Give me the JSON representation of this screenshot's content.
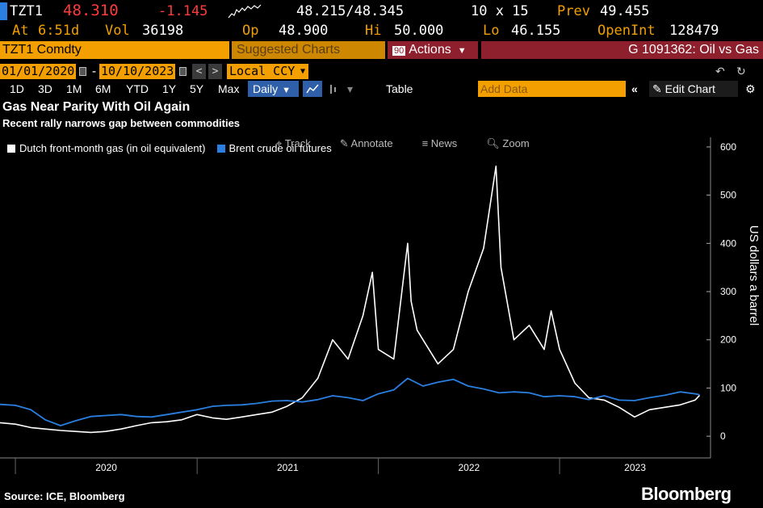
{
  "quote": {
    "ticker": "TZT1",
    "last": "48.310",
    "change": "-1.145",
    "bid_ask": "48.215/48.345",
    "size": "10 x 15",
    "prev_label": "Prev",
    "prev": "49.455",
    "at_label": "At",
    "time": "6:51d",
    "vol_label": "Vol",
    "vol": "36198",
    "op_label": "Op",
    "open": "48.900",
    "hi_label": "Hi",
    "high": "50.000",
    "lo_label": "Lo",
    "low": "46.155",
    "oi_label": "OpenInt",
    "open_interest": "128479"
  },
  "strip": {
    "security": "TZT1 Comdty",
    "suggested": "Suggested Charts",
    "actions_num": "90",
    "actions": "Actions",
    "chart_id": "G 1091362: Oil vs Gas"
  },
  "dates": {
    "start": "01/01/2020",
    "end": "10/10/2023",
    "currency": "Local CCY"
  },
  "toolbar": {
    "periods": [
      "1D",
      "3D",
      "1M",
      "6M",
      "YTD",
      "1Y",
      "5Y",
      "Max"
    ],
    "frequency": "Daily",
    "table": "Table",
    "add_data": "Add Data",
    "edit_chart": "Edit Chart"
  },
  "chart_tools": [
    "Track",
    "Annotate",
    "News",
    "Zoom"
  ],
  "footer": {
    "source": "Source: ICE, Bloomberg",
    "brand": "Bloomberg"
  },
  "colors": {
    "gas": "#ffffff",
    "oil": "#2a7fe0",
    "accent": "#f39f00",
    "action": "#8e1f2c"
  },
  "chart_data": {
    "type": "line",
    "title": "Gas Near Parity With Oil Again",
    "subtitle": "Recent rally narrows gap between commodities",
    "ylabel": "US dollars a barrel",
    "ylim": [
      -45,
      620
    ],
    "yticks": [
      0,
      100,
      200,
      300,
      400,
      500,
      600
    ],
    "xlim": [
      "2019-12-01",
      "2023-11-01"
    ],
    "xticks": [
      "2020",
      "2021",
      "2022",
      "2023"
    ],
    "legend_position": "top-left",
    "grid": false,
    "series": [
      {
        "name": "Dutch front-month gas (in oil equivalent)",
        "x": [
          "2019-12-01",
          "2020-01-01",
          "2020-02-01",
          "2020-03-01",
          "2020-04-01",
          "2020-05-01",
          "2020-06-01",
          "2020-07-01",
          "2020-08-01",
          "2020-09-01",
          "2020-10-01",
          "2020-11-01",
          "2020-12-01",
          "2021-01-01",
          "2021-02-01",
          "2021-03-01",
          "2021-04-01",
          "2021-05-01",
          "2021-06-01",
          "2021-07-01",
          "2021-08-01",
          "2021-09-01",
          "2021-10-01",
          "2021-11-01",
          "2021-12-01",
          "2021-12-20",
          "2022-01-01",
          "2022-02-01",
          "2022-03-01",
          "2022-03-08",
          "2022-03-20",
          "2022-04-01",
          "2022-05-01",
          "2022-06-01",
          "2022-07-01",
          "2022-08-01",
          "2022-08-26",
          "2022-09-05",
          "2022-10-01",
          "2022-11-01",
          "2022-12-01",
          "2022-12-15",
          "2023-01-01",
          "2023-02-01",
          "2023-03-01",
          "2023-04-01",
          "2023-05-01",
          "2023-06-01",
          "2023-07-01",
          "2023-08-01",
          "2023-09-01",
          "2023-10-01",
          "2023-10-10"
        ],
        "values": [
          28,
          25,
          18,
          15,
          12,
          10,
          8,
          10,
          15,
          22,
          28,
          30,
          34,
          45,
          38,
          35,
          40,
          45,
          50,
          62,
          80,
          120,
          200,
          160,
          250,
          340,
          180,
          160,
          400,
          280,
          220,
          200,
          150,
          180,
          300,
          390,
          560,
          350,
          200,
          230,
          180,
          260,
          180,
          110,
          80,
          75,
          60,
          40,
          55,
          60,
          65,
          75,
          85
        ]
      },
      {
        "name": "Brent crude oil futures",
        "x": [
          "2019-12-01",
          "2020-01-01",
          "2020-02-01",
          "2020-03-01",
          "2020-04-01",
          "2020-05-01",
          "2020-06-01",
          "2020-07-01",
          "2020-08-01",
          "2020-09-01",
          "2020-10-01",
          "2020-11-01",
          "2020-12-01",
          "2021-01-01",
          "2021-02-01",
          "2021-03-01",
          "2021-04-01",
          "2021-05-01",
          "2021-06-01",
          "2021-07-01",
          "2021-08-01",
          "2021-09-01",
          "2021-10-01",
          "2021-11-01",
          "2021-12-01",
          "2022-01-01",
          "2022-02-01",
          "2022-03-01",
          "2022-04-01",
          "2022-05-01",
          "2022-06-01",
          "2022-07-01",
          "2022-08-01",
          "2022-09-01",
          "2022-10-01",
          "2022-11-01",
          "2022-12-01",
          "2023-01-01",
          "2023-02-01",
          "2023-03-01",
          "2023-04-01",
          "2023-05-01",
          "2023-06-01",
          "2023-07-01",
          "2023-08-01",
          "2023-09-01",
          "2023-10-01",
          "2023-10-10"
        ],
        "values": [
          66,
          64,
          55,
          34,
          22,
          32,
          41,
          43,
          45,
          41,
          40,
          45,
          50,
          55,
          62,
          64,
          65,
          68,
          73,
          74,
          71,
          76,
          84,
          80,
          74,
          88,
          96,
          120,
          104,
          112,
          118,
          104,
          98,
          90,
          92,
          90,
          82,
          84,
          82,
          76,
          84,
          75,
          74,
          80,
          85,
          92,
          88,
          86
        ]
      }
    ]
  }
}
